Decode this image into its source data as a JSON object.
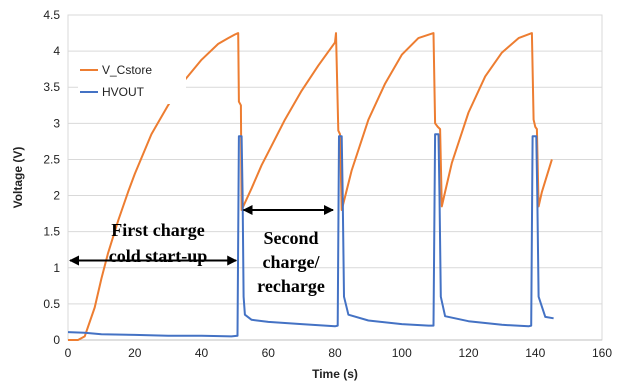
{
  "chart_data": {
    "type": "line",
    "xlabel": "Time (s)",
    "ylabel": "Voltage (V)",
    "xlim": [
      0,
      160
    ],
    "ylim": [
      0,
      4.5
    ],
    "xticks": [
      0,
      20,
      40,
      60,
      80,
      100,
      120,
      140,
      160
    ],
    "yticks": [
      0,
      0.5,
      1,
      1.5,
      2,
      2.5,
      3,
      3.5,
      4,
      4.5
    ],
    "ytick_labels": [
      "0",
      "0.5",
      "1",
      "1.5",
      "2",
      "2.5",
      "3",
      "3.5",
      "4",
      "4.5"
    ],
    "grid": "horizontal",
    "legend_position": "top-left",
    "series": [
      {
        "name": "V_Cstore",
        "color": "#ED7D31",
        "x": [
          0,
          3,
          5,
          8,
          10,
          12,
          15,
          18,
          20,
          25,
          30,
          35,
          40,
          45,
          48,
          50,
          51,
          51.2,
          51.8,
          52,
          53,
          55,
          58,
          60,
          65,
          70,
          75,
          80,
          80.3,
          81,
          81.5,
          82,
          83,
          85,
          90,
          95,
          100,
          105,
          109.5,
          110,
          110.8,
          111.5,
          112,
          113,
          115,
          120,
          125,
          130,
          135,
          139,
          139.5,
          140,
          140.5,
          141,
          142,
          145
        ],
        "y": [
          0,
          0,
          0.05,
          0.45,
          0.85,
          1.2,
          1.65,
          2.05,
          2.3,
          2.85,
          3.25,
          3.6,
          3.88,
          4.1,
          4.18,
          4.23,
          4.25,
          3.3,
          3.25,
          1.8,
          1.9,
          2.1,
          2.42,
          2.6,
          3.05,
          3.45,
          3.8,
          4.12,
          4.25,
          2.9,
          2.85,
          1.8,
          1.98,
          2.35,
          3.05,
          3.55,
          3.95,
          4.18,
          4.25,
          3.0,
          2.95,
          2.92,
          1.85,
          2.05,
          2.45,
          3.15,
          3.65,
          3.98,
          4.18,
          4.25,
          3.05,
          2.95,
          2.92,
          1.85,
          2.05,
          2.5
        ]
      },
      {
        "name": "HVOUT",
        "color": "#4472C4",
        "x": [
          0,
          5,
          10,
          20,
          30,
          40,
          49,
          50.8,
          51.2,
          52,
          52.3,
          52.6,
          53,
          55,
          60,
          70,
          80,
          80.8,
          81.2,
          82,
          82.3,
          82.7,
          84,
          90,
          100,
          108,
          109.5,
          110,
          111,
          111.3,
          111.7,
          113,
          120,
          130,
          138,
          138.8,
          139.2,
          140.3,
          140.6,
          141,
          143,
          145.5
        ],
        "y": [
          0.11,
          0.1,
          0.08,
          0.07,
          0.06,
          0.06,
          0.05,
          0.06,
          2.82,
          2.82,
          2.0,
          0.6,
          0.35,
          0.28,
          0.25,
          0.22,
          0.19,
          0.2,
          2.82,
          2.82,
          2.0,
          0.6,
          0.35,
          0.27,
          0.22,
          0.2,
          0.2,
          2.85,
          2.85,
          2.0,
          0.6,
          0.33,
          0.26,
          0.21,
          0.19,
          0.2,
          2.82,
          2.82,
          2.0,
          0.6,
          0.32,
          0.3
        ]
      }
    ],
    "annotations": [
      {
        "lines": [
          "First charge",
          "cold start-up"
        ],
        "arrow_x": [
          0,
          51
        ]
      },
      {
        "lines": [
          "Second",
          "charge/",
          "recharge"
        ],
        "arrow_x": [
          52,
          80
        ]
      }
    ]
  }
}
